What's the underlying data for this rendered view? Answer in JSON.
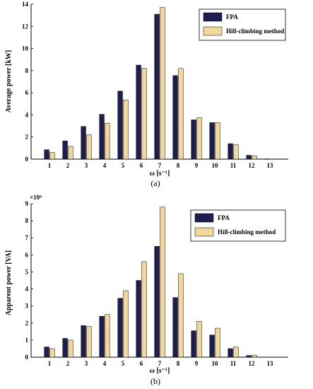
{
  "colors": {
    "fpa": "#1f1d4f",
    "hill": "#f1d79b",
    "axis": "#000000"
  },
  "chart_data": [
    {
      "type": "bar",
      "caption": "(a)",
      "categories": [
        "1",
        "2",
        "3",
        "4",
        "5",
        "6",
        "7",
        "8",
        "9",
        "10",
        "11",
        "12",
        "13"
      ],
      "series": [
        {
          "name": "FPA",
          "values": [
            0.85,
            1.65,
            2.95,
            4.05,
            6.15,
            8.5,
            13.1,
            7.55,
            3.55,
            3.3,
            1.4,
            0.35,
            0.03
          ]
        },
        {
          "name": "Hill-climbing method",
          "values": [
            0.6,
            1.15,
            2.2,
            3.25,
            5.35,
            8.2,
            13.7,
            8.2,
            3.75,
            3.3,
            1.3,
            0.3,
            0.01
          ]
        }
      ],
      "xlabel": "ω [s⁻¹]",
      "ylabel": "Average power [kW]",
      "ylim": [
        0,
        14
      ],
      "yticks": [
        "0",
        "2",
        "4",
        "6",
        "8",
        "10",
        "12",
        "14"
      ],
      "y_multiplier": "",
      "legend_position": "top-right"
    },
    {
      "type": "bar",
      "caption": "(b)",
      "categories": [
        "1",
        "2",
        "3",
        "4",
        "5",
        "6",
        "7",
        "8",
        "9",
        "10",
        "11",
        "12",
        "13"
      ],
      "series": [
        {
          "name": "FPA",
          "values": [
            0.6,
            1.1,
            1.85,
            2.4,
            3.45,
            4.5,
            6.5,
            3.5,
            1.55,
            1.3,
            0.5,
            0.1,
            0.01
          ]
        },
        {
          "name": "Hill-climbing method",
          "values": [
            0.5,
            1.0,
            1.8,
            2.5,
            3.9,
            5.6,
            8.8,
            4.9,
            2.1,
            1.7,
            0.6,
            0.12,
            0.01
          ]
        }
      ],
      "xlabel": "ω [s⁻¹]",
      "ylabel": "Apparent power [VA]",
      "ylim": [
        0,
        9
      ],
      "yticks": [
        "0",
        "1",
        "2",
        "3",
        "4",
        "5",
        "6",
        "7",
        "8",
        "9"
      ],
      "y_multiplier": "×10⁴",
      "legend_position": "top-right"
    }
  ]
}
